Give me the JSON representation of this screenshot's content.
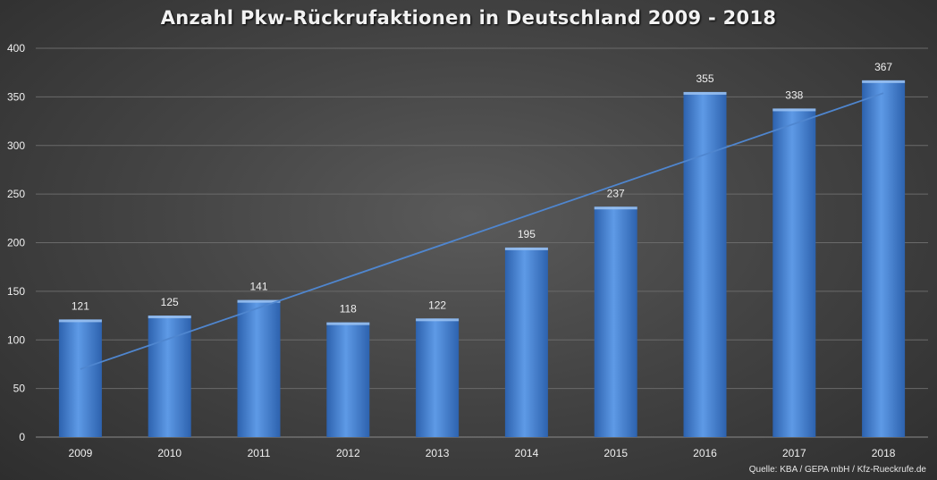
{
  "chart_data": {
    "type": "bar",
    "title": "Anzahl Pkw-Rückrufaktionen in Deutschland 2009 - 2018",
    "categories": [
      "2009",
      "2010",
      "2011",
      "2012",
      "2013",
      "2014",
      "2015",
      "2016",
      "2017",
      "2018"
    ],
    "values": [
      121,
      125,
      141,
      118,
      122,
      195,
      237,
      355,
      338,
      367
    ],
    "ylim": [
      0,
      400
    ],
    "yticks": [
      0,
      50,
      100,
      150,
      200,
      250,
      300,
      350,
      400
    ],
    "grid": true,
    "trendline": "linear",
    "data_labels": true,
    "source": "Quelle: KBA / GEPA mbH / Kfz-Rueckrufe.de",
    "colors": {
      "bar": "#3f7fd4",
      "bar_light": "#5e9ae6",
      "bar_dark": "#2d62ae",
      "trendline": "#4f86cf",
      "grid": "#6a6a6a",
      "text": "#f0f0f0"
    }
  }
}
